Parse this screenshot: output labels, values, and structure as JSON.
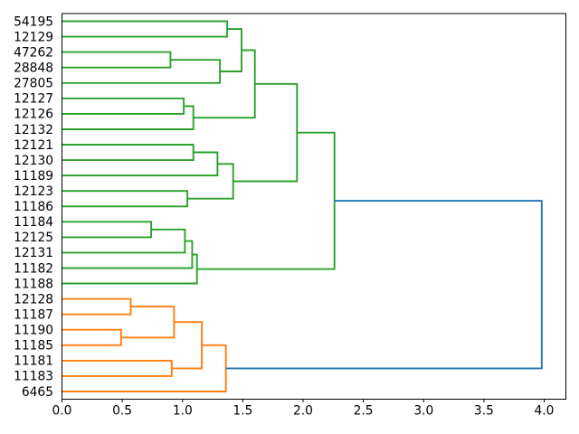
{
  "figure": {
    "background": "#ffffff",
    "title": ""
  },
  "chart_data": {
    "type": "dendrogram",
    "orientation": "right",
    "title": "",
    "xlabel": "",
    "ylabel": "",
    "grid": false,
    "legend": null,
    "xlim": [
      0.0,
      4.18
    ],
    "x_tick_values": [
      0.0,
      0.5,
      1.0,
      1.5,
      2.0,
      2.5,
      3.0,
      3.5,
      4.0
    ],
    "x_ticks": [
      "0.0",
      "0.5",
      "1.0",
      "1.5",
      "2.0",
      "2.5",
      "3.0",
      "3.5",
      "4.0"
    ],
    "leaves": [
      "54195",
      "12129",
      "47262",
      "28848",
      "27805",
      "12127",
      "12126",
      "12132",
      "12121",
      "12130",
      "11189",
      "12123",
      "11186",
      "11184",
      "12125",
      "12131",
      "11182",
      "11188",
      "12128",
      "11187",
      "11190",
      "11185",
      "11181",
      "11183",
      "6465"
    ],
    "colors": {
      "cluster_green": "#2ca02c",
      "cluster_orange": "#ff7f0e",
      "link_blue": "#1f77b4",
      "axis": "#000000"
    },
    "links": [
      {
        "id": "A",
        "children": [
          "54195",
          "12129"
        ],
        "distance": 1.37,
        "color": "cluster_green"
      },
      {
        "id": "B",
        "children": [
          "47262",
          "28848"
        ],
        "distance": 0.9,
        "color": "cluster_green"
      },
      {
        "id": "C",
        "children": [
          "B",
          "27805"
        ],
        "distance": 1.31,
        "color": "cluster_green"
      },
      {
        "id": "D",
        "children": [
          "A",
          "C"
        ],
        "distance": 1.49,
        "color": "cluster_green"
      },
      {
        "id": "E",
        "children": [
          "12127",
          "12126"
        ],
        "distance": 1.01,
        "color": "cluster_green"
      },
      {
        "id": "F",
        "children": [
          "E",
          "12132"
        ],
        "distance": 1.09,
        "color": "cluster_green"
      },
      {
        "id": "G",
        "children": [
          "D",
          "F"
        ],
        "distance": 1.6,
        "color": "cluster_green"
      },
      {
        "id": "H",
        "children": [
          "12121",
          "12130"
        ],
        "distance": 1.09,
        "color": "cluster_green"
      },
      {
        "id": "I",
        "children": [
          "H",
          "11189"
        ],
        "distance": 1.29,
        "color": "cluster_green"
      },
      {
        "id": "J",
        "children": [
          "12123",
          "11186"
        ],
        "distance": 1.04,
        "color": "cluster_green"
      },
      {
        "id": "K",
        "children": [
          "I",
          "J"
        ],
        "distance": 1.42,
        "color": "cluster_green"
      },
      {
        "id": "L",
        "children": [
          "G",
          "K"
        ],
        "distance": 1.95,
        "color": "cluster_green"
      },
      {
        "id": "M",
        "children": [
          "11184",
          "12125"
        ],
        "distance": 0.74,
        "color": "cluster_green"
      },
      {
        "id": "N",
        "children": [
          "M",
          "12131"
        ],
        "distance": 1.02,
        "color": "cluster_green"
      },
      {
        "id": "O",
        "children": [
          "N",
          "11182"
        ],
        "distance": 1.08,
        "color": "cluster_green"
      },
      {
        "id": "P",
        "children": [
          "O",
          "11188"
        ],
        "distance": 1.12,
        "color": "cluster_green"
      },
      {
        "id": "Q",
        "children": [
          "L",
          "P"
        ],
        "distance": 2.26,
        "color": "cluster_green"
      },
      {
        "id": "R",
        "children": [
          "12128",
          "11187"
        ],
        "distance": 0.57,
        "color": "cluster_orange"
      },
      {
        "id": "S",
        "children": [
          "11190",
          "11185"
        ],
        "distance": 0.49,
        "color": "cluster_orange"
      },
      {
        "id": "T",
        "children": [
          "R",
          "S"
        ],
        "distance": 0.93,
        "color": "cluster_orange"
      },
      {
        "id": "U",
        "children": [
          "11181",
          "11183"
        ],
        "distance": 0.91,
        "color": "cluster_orange"
      },
      {
        "id": "V",
        "children": [
          "T",
          "U"
        ],
        "distance": 1.16,
        "color": "cluster_orange"
      },
      {
        "id": "W",
        "children": [
          "V",
          "6465"
        ],
        "distance": 1.36,
        "color": "cluster_orange"
      },
      {
        "id": "ROOT",
        "children": [
          "Q",
          "W"
        ],
        "distance": 3.98,
        "color": "link_blue"
      }
    ]
  }
}
